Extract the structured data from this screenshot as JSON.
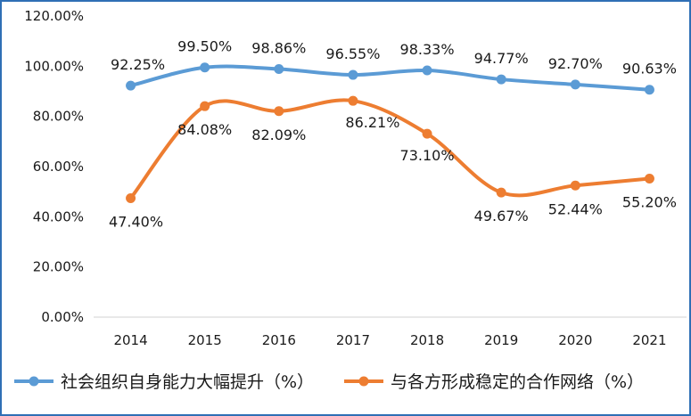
{
  "chart_data": {
    "type": "line",
    "title": "",
    "xlabel": "",
    "ylabel": "",
    "x": [
      "2014",
      "2015",
      "2016",
      "2017",
      "2018",
      "2019",
      "2020",
      "2021"
    ],
    "ylim": [
      0,
      120
    ],
    "yticks": [
      "0.00%",
      "20.00%",
      "40.00%",
      "60.00%",
      "80.00%",
      "100.00%",
      "120.00%"
    ],
    "grid": false,
    "legend": "bottom",
    "series": [
      {
        "name": "社会组织自身能力大幅提升（%）",
        "color": "#5b9bd5",
        "values": [
          92.25,
          99.5,
          98.86,
          96.55,
          98.33,
          94.77,
          92.7,
          90.63
        ],
        "labels": [
          "92.25%",
          "99.50%",
          "98.86%",
          "96.55%",
          "98.33%",
          "94.77%",
          "92.70%",
          "90.63%"
        ]
      },
      {
        "name": "与各方形成稳定的合作网络（%）",
        "color": "#ed7d31",
        "values": [
          47.4,
          84.08,
          82.09,
          86.21,
          73.1,
          49.67,
          52.44,
          55.2
        ],
        "labels": [
          "47.40%",
          "84.08%",
          "82.09%",
          "86.21%",
          "73.10%",
          "49.67%",
          "52.44%",
          "55.20%"
        ]
      }
    ]
  }
}
